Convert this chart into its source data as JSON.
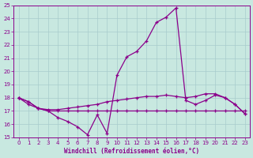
{
  "x": [
    0,
    1,
    2,
    3,
    4,
    5,
    6,
    7,
    8,
    9,
    10,
    11,
    12,
    13,
    14,
    15,
    16,
    17,
    18,
    19,
    20,
    21,
    22,
    23
  ],
  "curve_top": [
    18.0,
    17.7,
    17.2,
    17.0,
    16.5,
    16.2,
    15.8,
    15.2,
    16.7,
    15.3,
    19.7,
    21.1,
    21.5,
    22.3,
    23.7,
    24.1,
    24.8,
    17.8,
    17.5,
    17.8,
    18.2,
    18.0,
    17.5,
    16.8
  ],
  "curve_mid": [
    18.0,
    17.7,
    17.2,
    17.1,
    17.1,
    17.2,
    17.3,
    17.4,
    17.5,
    17.7,
    17.8,
    17.9,
    18.0,
    18.1,
    18.1,
    18.2,
    18.1,
    18.0,
    18.1,
    18.3,
    18.3,
    18.0,
    17.5,
    16.8
  ],
  "curve_bot": [
    18.0,
    17.5,
    17.2,
    17.0,
    17.0,
    17.0,
    17.0,
    17.0,
    17.0,
    17.0,
    17.0,
    17.0,
    17.0,
    17.0,
    17.0,
    17.0,
    17.0,
    17.0,
    17.0,
    17.0,
    17.0,
    17.0,
    17.0,
    17.0
  ],
  "ylim": [
    15,
    25
  ],
  "xlim_min": -0.5,
  "xlim_max": 23.5,
  "yticks": [
    15,
    16,
    17,
    18,
    19,
    20,
    21,
    22,
    23,
    24,
    25
  ],
  "xticks": [
    0,
    1,
    2,
    3,
    4,
    5,
    6,
    7,
    8,
    9,
    10,
    11,
    12,
    13,
    14,
    15,
    16,
    17,
    18,
    19,
    20,
    21,
    22,
    23
  ],
  "xlabel": "Windchill (Refroidissement éolien,°C)",
  "line_color": "#8B008B",
  "bg_color": "#c8e8e0",
  "grid_color": "#a8cccc"
}
